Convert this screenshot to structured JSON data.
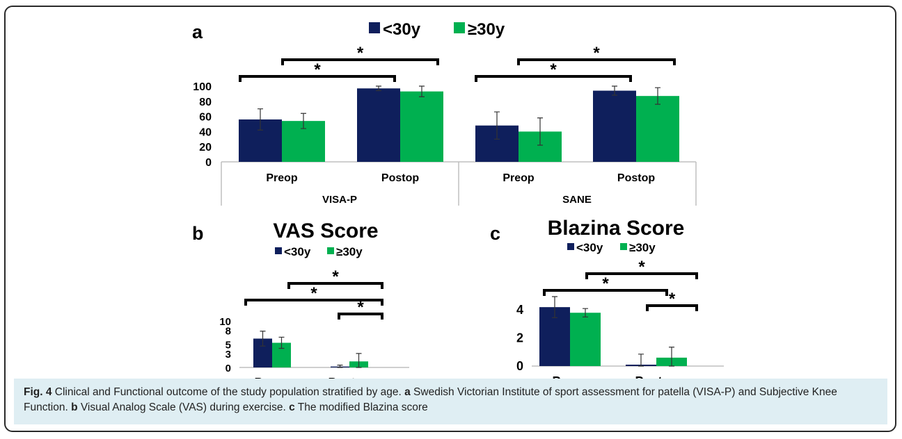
{
  "colors": {
    "under30": "#0f1f5c",
    "over30": "#00b050",
    "axis": "#bfbfbf",
    "text": "#000000",
    "error": "#333333"
  },
  "legend": {
    "under30": "<30y",
    "over30": "≥30y"
  },
  "panels": {
    "a": {
      "letter": "a"
    },
    "b": {
      "letter": "b"
    },
    "c": {
      "letter": "c"
    }
  },
  "chart_data": [
    {
      "panel": "a",
      "type": "bar",
      "title": "",
      "groups": [
        "VISA-P",
        "SANE"
      ],
      "categories": [
        "Preop",
        "Postop",
        "Preop",
        "Postop"
      ],
      "series": [
        {
          "name": "<30y",
          "values": [
            56,
            97,
            48,
            94
          ],
          "errors": [
            14,
            3,
            18,
            6
          ]
        },
        {
          "name": "≥30y",
          "values": [
            54,
            93,
            40,
            87
          ],
          "errors": [
            10,
            7,
            18,
            11
          ]
        }
      ],
      "ylim": [
        0,
        100
      ],
      "yticks": [
        "0",
        "20",
        "40",
        "60",
        "80",
        "100"
      ],
      "significance": [
        "*",
        "*",
        "*",
        "*"
      ],
      "legend": "top"
    },
    {
      "panel": "b",
      "type": "bar",
      "title": "VAS Score",
      "categories": [
        "Preop",
        "Postop"
      ],
      "series": [
        {
          "name": "<30y",
          "values": [
            6.2,
            0.2
          ],
          "errors": [
            1.6,
            0.3
          ]
        },
        {
          "name": "≥30y",
          "values": [
            5.3,
            1.3
          ],
          "errors": [
            1.2,
            1.7
          ]
        }
      ],
      "ylim": [
        0,
        10
      ],
      "yticks": [
        "0",
        "3",
        "5",
        "8",
        "10"
      ],
      "significance": [
        "*",
        "*",
        "*"
      ],
      "legend": "top"
    },
    {
      "panel": "c",
      "type": "bar",
      "title": "Blazina Score",
      "categories": [
        "Preop",
        "Postop"
      ],
      "series": [
        {
          "name": "<30y",
          "values": [
            4.2,
            0.1
          ],
          "errors": [
            0.75,
            0.75
          ]
        },
        {
          "name": "≥30y",
          "values": [
            3.8,
            0.6
          ],
          "errors": [
            0.3,
            0.75
          ]
        }
      ],
      "ylim": [
        0,
        5
      ],
      "yticks": [
        "0",
        "2",
        "4"
      ],
      "significance": [
        "*",
        "*",
        "*"
      ],
      "legend": "top"
    }
  ],
  "caption": {
    "label": "Fig. 4",
    "text1": " Clinical and Functional outcome of the study population stratified by age. ",
    "a": "a",
    "text2": " Swedish Victorian Institute of sport assessment for patella (VISA-P) and Subjective Knee Function. ",
    "b": "b",
    "text3": " Visual Analog Scale (VAS) during exercise. ",
    "c": "c",
    "text4": " The modified Blazina score"
  }
}
